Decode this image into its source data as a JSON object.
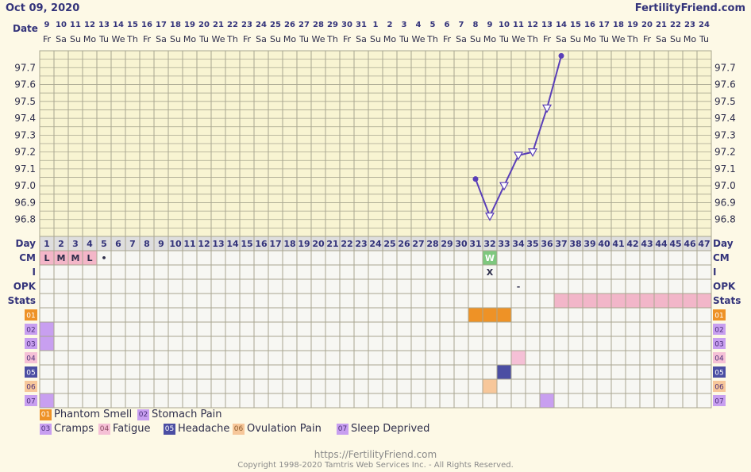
{
  "header": {
    "date_text": "Oct 09, 2020",
    "site": "FertilityFriend.com",
    "date_label": "Date"
  },
  "chart_data": {
    "type": "line",
    "dates": [
      "9",
      "10",
      "11",
      "12",
      "13",
      "14",
      "15",
      "16",
      "17",
      "18",
      "19",
      "20",
      "21",
      "22",
      "23",
      "24",
      "25",
      "26",
      "27",
      "28",
      "29",
      "30",
      "31",
      "1",
      "2",
      "3",
      "4",
      "5",
      "6",
      "7",
      "8",
      "9",
      "10",
      "11",
      "12",
      "13",
      "14",
      "15",
      "16",
      "17",
      "18",
      "19",
      "20",
      "21",
      "22",
      "23",
      "24"
    ],
    "weekdays": [
      "Fr",
      "Sa",
      "Su",
      "Mo",
      "Tu",
      "We",
      "Th",
      "Fr",
      "Sa",
      "Su",
      "Mo",
      "Tu",
      "We",
      "Th",
      "Fr",
      "Sa",
      "Su",
      "Mo",
      "Tu",
      "We",
      "Th",
      "Fr",
      "Sa",
      "Su",
      "Mo",
      "Tu",
      "We",
      "Th",
      "Fr",
      "Sa",
      "Su",
      "Mo",
      "Tu",
      "We",
      "Th",
      "Fr",
      "Sa",
      "Su",
      "Mo",
      "Tu",
      "We",
      "Th",
      "Fr",
      "Sa",
      "Su",
      "Mo",
      "Tu"
    ],
    "cycle_days": [
      1,
      2,
      3,
      4,
      5,
      6,
      7,
      8,
      9,
      10,
      11,
      12,
      13,
      14,
      15,
      16,
      17,
      18,
      19,
      20,
      21,
      22,
      23,
      24,
      25,
      26,
      27,
      28,
      29,
      30,
      31,
      32,
      33,
      34,
      35,
      36,
      37,
      38,
      39,
      40,
      41,
      42,
      43,
      44,
      45,
      46,
      47
    ],
    "ylim": [
      96.7,
      97.8
    ],
    "yticks": [
      "96.8",
      "96.9",
      "97.0",
      "97.1",
      "97.2",
      "97.3",
      "97.4",
      "97.5",
      "97.6",
      "97.7"
    ],
    "series": [
      {
        "points": [
          {
            "day": 31,
            "temp": 97.04,
            "marker": "dot"
          },
          {
            "day": 32,
            "temp": 96.82,
            "marker": "triangle"
          },
          {
            "day": 33,
            "temp": 97.0,
            "marker": "triangle"
          },
          {
            "day": 34,
            "temp": 97.18,
            "marker": "triangle"
          },
          {
            "day": 35,
            "temp": 97.2,
            "marker": "triangle"
          },
          {
            "day": 36,
            "temp": 97.46,
            "marker": "triangle"
          },
          {
            "day": 37,
            "temp": 97.77,
            "marker": "dot"
          }
        ]
      }
    ],
    "colors": {
      "line": "#5a3fb8",
      "chart_bg": "#f8f4d2",
      "grid": "#a9a690"
    }
  },
  "rows": {
    "day": "Day",
    "cm": "CM",
    "i": "I",
    "opk": "OPK",
    "stats": "Stats"
  },
  "cm_entries": [
    {
      "day": 1,
      "text": "L",
      "color": "#f4b6c8"
    },
    {
      "day": 2,
      "text": "M",
      "color": "#f4b6c8"
    },
    {
      "day": 3,
      "text": "M",
      "color": "#f4b6c8"
    },
    {
      "day": 4,
      "text": "L",
      "color": "#f4b6c8"
    },
    {
      "day": 5,
      "text": "•",
      "color": ""
    },
    {
      "day": 32,
      "text": "W",
      "color": "#7ec87e"
    }
  ],
  "i_entries": [
    {
      "day": 32,
      "text": "X"
    }
  ],
  "opk_entries": [
    {
      "day": 34,
      "text": "-"
    }
  ],
  "stats_bar": {
    "from_day": 37,
    "to_day": 47,
    "color": "#f2b6c9"
  },
  "symptoms": [
    {
      "code": "01",
      "name": "Phantom Smell",
      "color": "#ee9226",
      "days": [
        31,
        32,
        33
      ]
    },
    {
      "code": "02",
      "name": "Stomach Pain",
      "color": "#c89ff0",
      "days": [
        1
      ]
    },
    {
      "code": "03",
      "name": "Cramps",
      "color": "#c89ff0",
      "days": [
        1
      ]
    },
    {
      "code": "04",
      "name": "Fatigue",
      "color": "#f5c0d6",
      "days": [
        34
      ]
    },
    {
      "code": "05",
      "name": "Headache",
      "color": "#4b4ea3",
      "days": [
        33
      ]
    },
    {
      "code": "06",
      "name": "Ovulation Pain",
      "color": "#f7c79a",
      "days": [
        32
      ]
    },
    {
      "code": "07",
      "name": "Sleep Deprived",
      "color": "#c89ff0",
      "days": [
        1,
        36
      ]
    }
  ],
  "footer": {
    "url": "https://FertilityFriend.com",
    "copyright": "Copyright 1998-2020 Tamtris Web Services Inc. - All Rights Reserved."
  }
}
